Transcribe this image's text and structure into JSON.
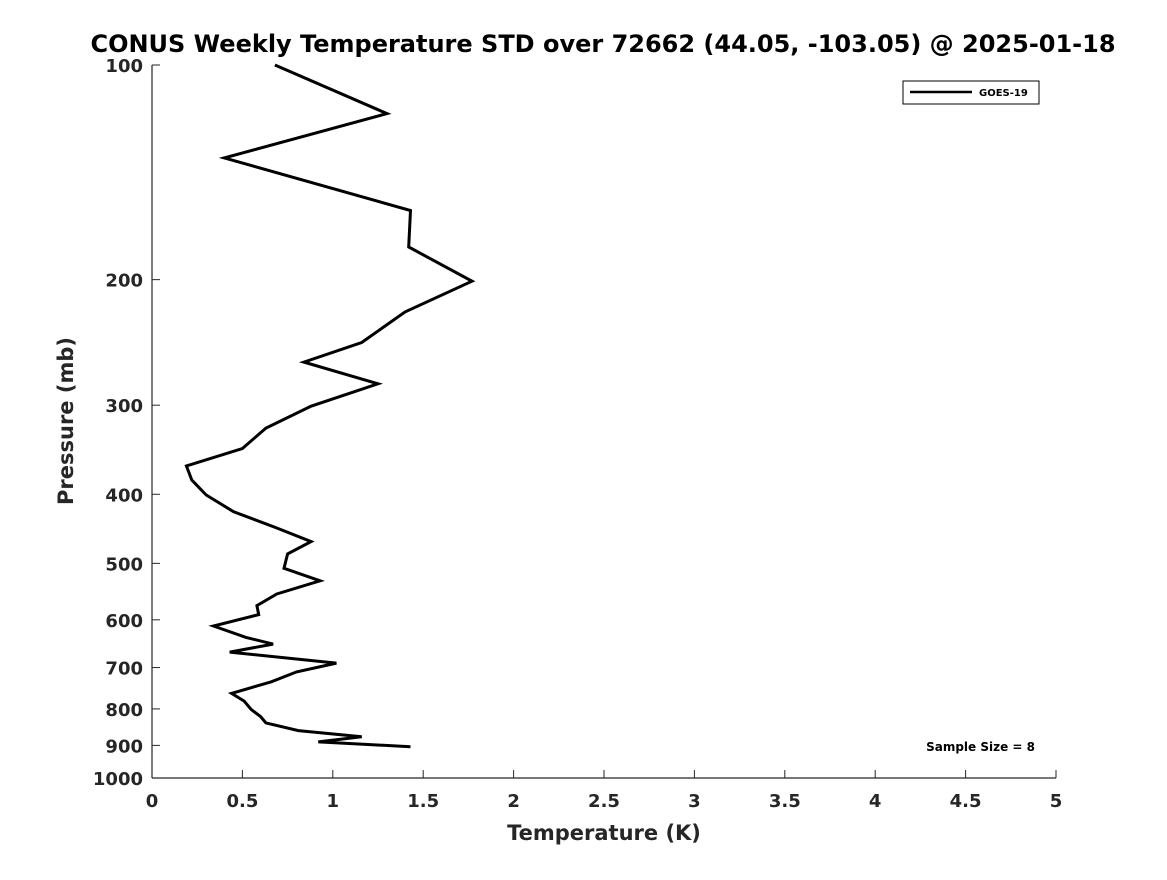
{
  "chart_data": {
    "type": "line",
    "title": "CONUS Weekly Temperature STD over 72662 (44.05, -103.05) @ 2025-01-18",
    "xlabel": "Temperature (K)",
    "ylabel": "Pressure (mb)",
    "xlim": [
      0,
      5
    ],
    "ylim": [
      100,
      1000
    ],
    "y_scale": "log",
    "y_inverted": true,
    "grid": false,
    "legend_position": "top-right",
    "x_ticks": [
      "0",
      "0.5",
      "1",
      "1.5",
      "2",
      "2.5",
      "3",
      "3.5",
      "4",
      "4.5",
      "5"
    ],
    "y_ticks": [
      "100",
      "200",
      "300",
      "400",
      "500",
      "600",
      "700",
      "800",
      "900",
      "1000"
    ],
    "series": [
      {
        "name": "GOES-19",
        "color": "#000000",
        "points": [
          [
            0.68,
            100
          ],
          [
            1.3,
            117
          ],
          [
            0.4,
            135
          ],
          [
            1.43,
            160
          ],
          [
            1.42,
            180
          ],
          [
            1.77,
            201
          ],
          [
            1.4,
            222
          ],
          [
            1.16,
            245
          ],
          [
            0.84,
            261
          ],
          [
            1.25,
            280
          ],
          [
            0.88,
            301
          ],
          [
            0.63,
            323
          ],
          [
            0.5,
            345
          ],
          [
            0.19,
            365
          ],
          [
            0.22,
            382
          ],
          [
            0.3,
            401
          ],
          [
            0.45,
            423
          ],
          [
            0.69,
            446
          ],
          [
            0.88,
            466
          ],
          [
            0.75,
            485
          ],
          [
            0.73,
            508
          ],
          [
            0.93,
            529
          ],
          [
            0.69,
            552
          ],
          [
            0.58,
            573
          ],
          [
            0.59,
            590
          ],
          [
            0.34,
            612
          ],
          [
            0.52,
            635
          ],
          [
            0.67,
            649
          ],
          [
            0.43,
            666
          ],
          [
            1.02,
            690
          ],
          [
            0.8,
            710
          ],
          [
            0.66,
            733
          ],
          [
            0.44,
            761
          ],
          [
            0.51,
            780
          ],
          [
            0.55,
            802
          ],
          [
            0.6,
            820
          ],
          [
            0.63,
            837
          ],
          [
            0.81,
            858
          ],
          [
            1.16,
            875
          ],
          [
            0.92,
            890
          ],
          [
            1.43,
            904
          ]
        ]
      }
    ],
    "annotations": [
      {
        "text": "Sample Size = 8",
        "position": "bottom-right"
      }
    ]
  },
  "style": {
    "axis_color": "#262626",
    "line_color": "#000000",
    "background": "#ffffff"
  }
}
